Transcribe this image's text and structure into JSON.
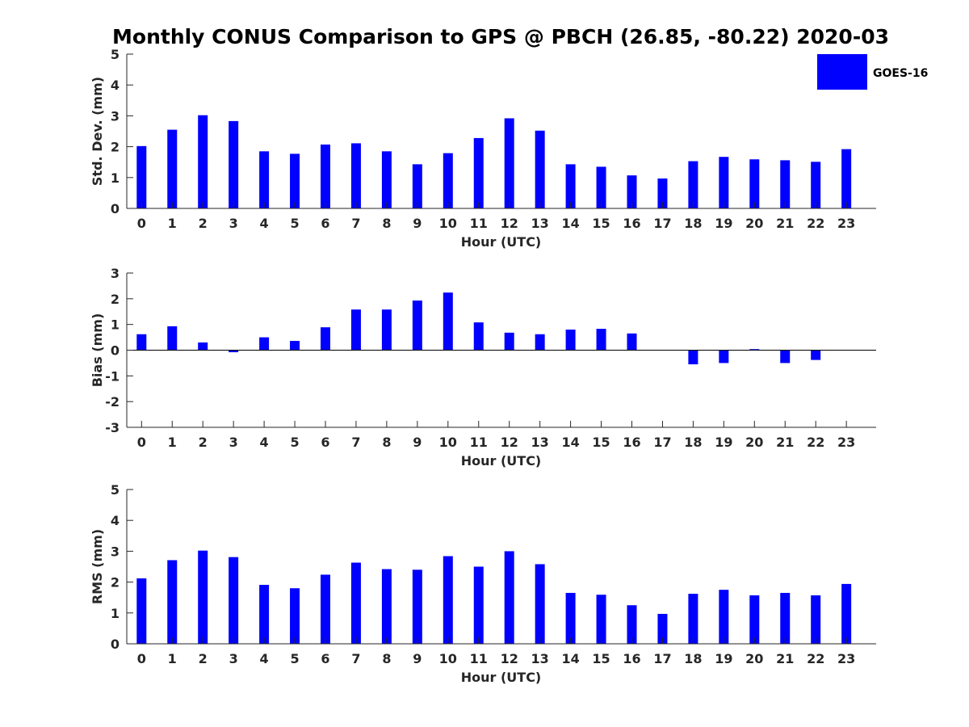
{
  "figure": {
    "title": "Monthly CONUS Comparison to GPS @ PBCH (26.85, -80.22) 2020-03",
    "bar_color": "#0000ff",
    "legend": {
      "label": "GOES-16",
      "placement": "top-right"
    }
  },
  "chart_data": [
    {
      "type": "bar",
      "xlabel": "Hour (UTC)",
      "ylabel": "Std. Dev. (mm)",
      "categories": [
        "0",
        "1",
        "2",
        "3",
        "4",
        "5",
        "6",
        "7",
        "8",
        "9",
        "10",
        "11",
        "12",
        "13",
        "14",
        "15",
        "16",
        "17",
        "18",
        "19",
        "20",
        "21",
        "22",
        "23"
      ],
      "series": [
        {
          "name": "GOES-16",
          "values": [
            2.02,
            2.55,
            3.02,
            2.83,
            1.85,
            1.77,
            2.07,
            2.11,
            1.85,
            1.43,
            1.79,
            2.28,
            2.92,
            2.52,
            1.43,
            1.35,
            1.07,
            0.97,
            1.53,
            1.67,
            1.59,
            1.56,
            1.51,
            1.92
          ]
        }
      ],
      "ylim": [
        0,
        5
      ],
      "yticks": [
        0,
        1,
        2,
        3,
        4,
        5
      ],
      "zero_line": false,
      "grid": false
    },
    {
      "type": "bar",
      "xlabel": "Hour (UTC)",
      "ylabel": "Bias (mm)",
      "categories": [
        "0",
        "1",
        "2",
        "3",
        "4",
        "5",
        "6",
        "7",
        "8",
        "9",
        "10",
        "11",
        "12",
        "13",
        "14",
        "15",
        "16",
        "17",
        "18",
        "19",
        "20",
        "21",
        "22",
        "23"
      ],
      "series": [
        {
          "name": "GOES-16",
          "values": [
            0.62,
            0.93,
            0.3,
            -0.08,
            0.5,
            0.36,
            0.89,
            1.58,
            1.58,
            1.93,
            2.24,
            1.08,
            0.68,
            0.62,
            0.8,
            0.83,
            0.65,
            0.0,
            -0.55,
            -0.5,
            0.04,
            -0.5,
            -0.38,
            0.0
          ]
        }
      ],
      "ylim": [
        -3,
        3
      ],
      "yticks": [
        -3,
        -2,
        -1,
        0,
        1,
        2,
        3
      ],
      "zero_line": true,
      "grid": false
    },
    {
      "type": "bar",
      "xlabel": "Hour (UTC)",
      "ylabel": "RMS (mm)",
      "categories": [
        "0",
        "1",
        "2",
        "3",
        "4",
        "5",
        "6",
        "7",
        "8",
        "9",
        "10",
        "11",
        "12",
        "13",
        "14",
        "15",
        "16",
        "17",
        "18",
        "19",
        "20",
        "21",
        "22",
        "23"
      ],
      "series": [
        {
          "name": "GOES-16",
          "values": [
            2.12,
            2.71,
            3.02,
            2.81,
            1.91,
            1.8,
            2.24,
            2.63,
            2.42,
            2.4,
            2.84,
            2.5,
            3.0,
            2.58,
            1.65,
            1.59,
            1.25,
            0.97,
            1.62,
            1.75,
            1.57,
            1.65,
            1.57,
            1.94
          ]
        }
      ],
      "ylim": [
        0,
        5
      ],
      "yticks": [
        0,
        1,
        2,
        3,
        4,
        5
      ],
      "zero_line": false,
      "grid": false
    }
  ]
}
